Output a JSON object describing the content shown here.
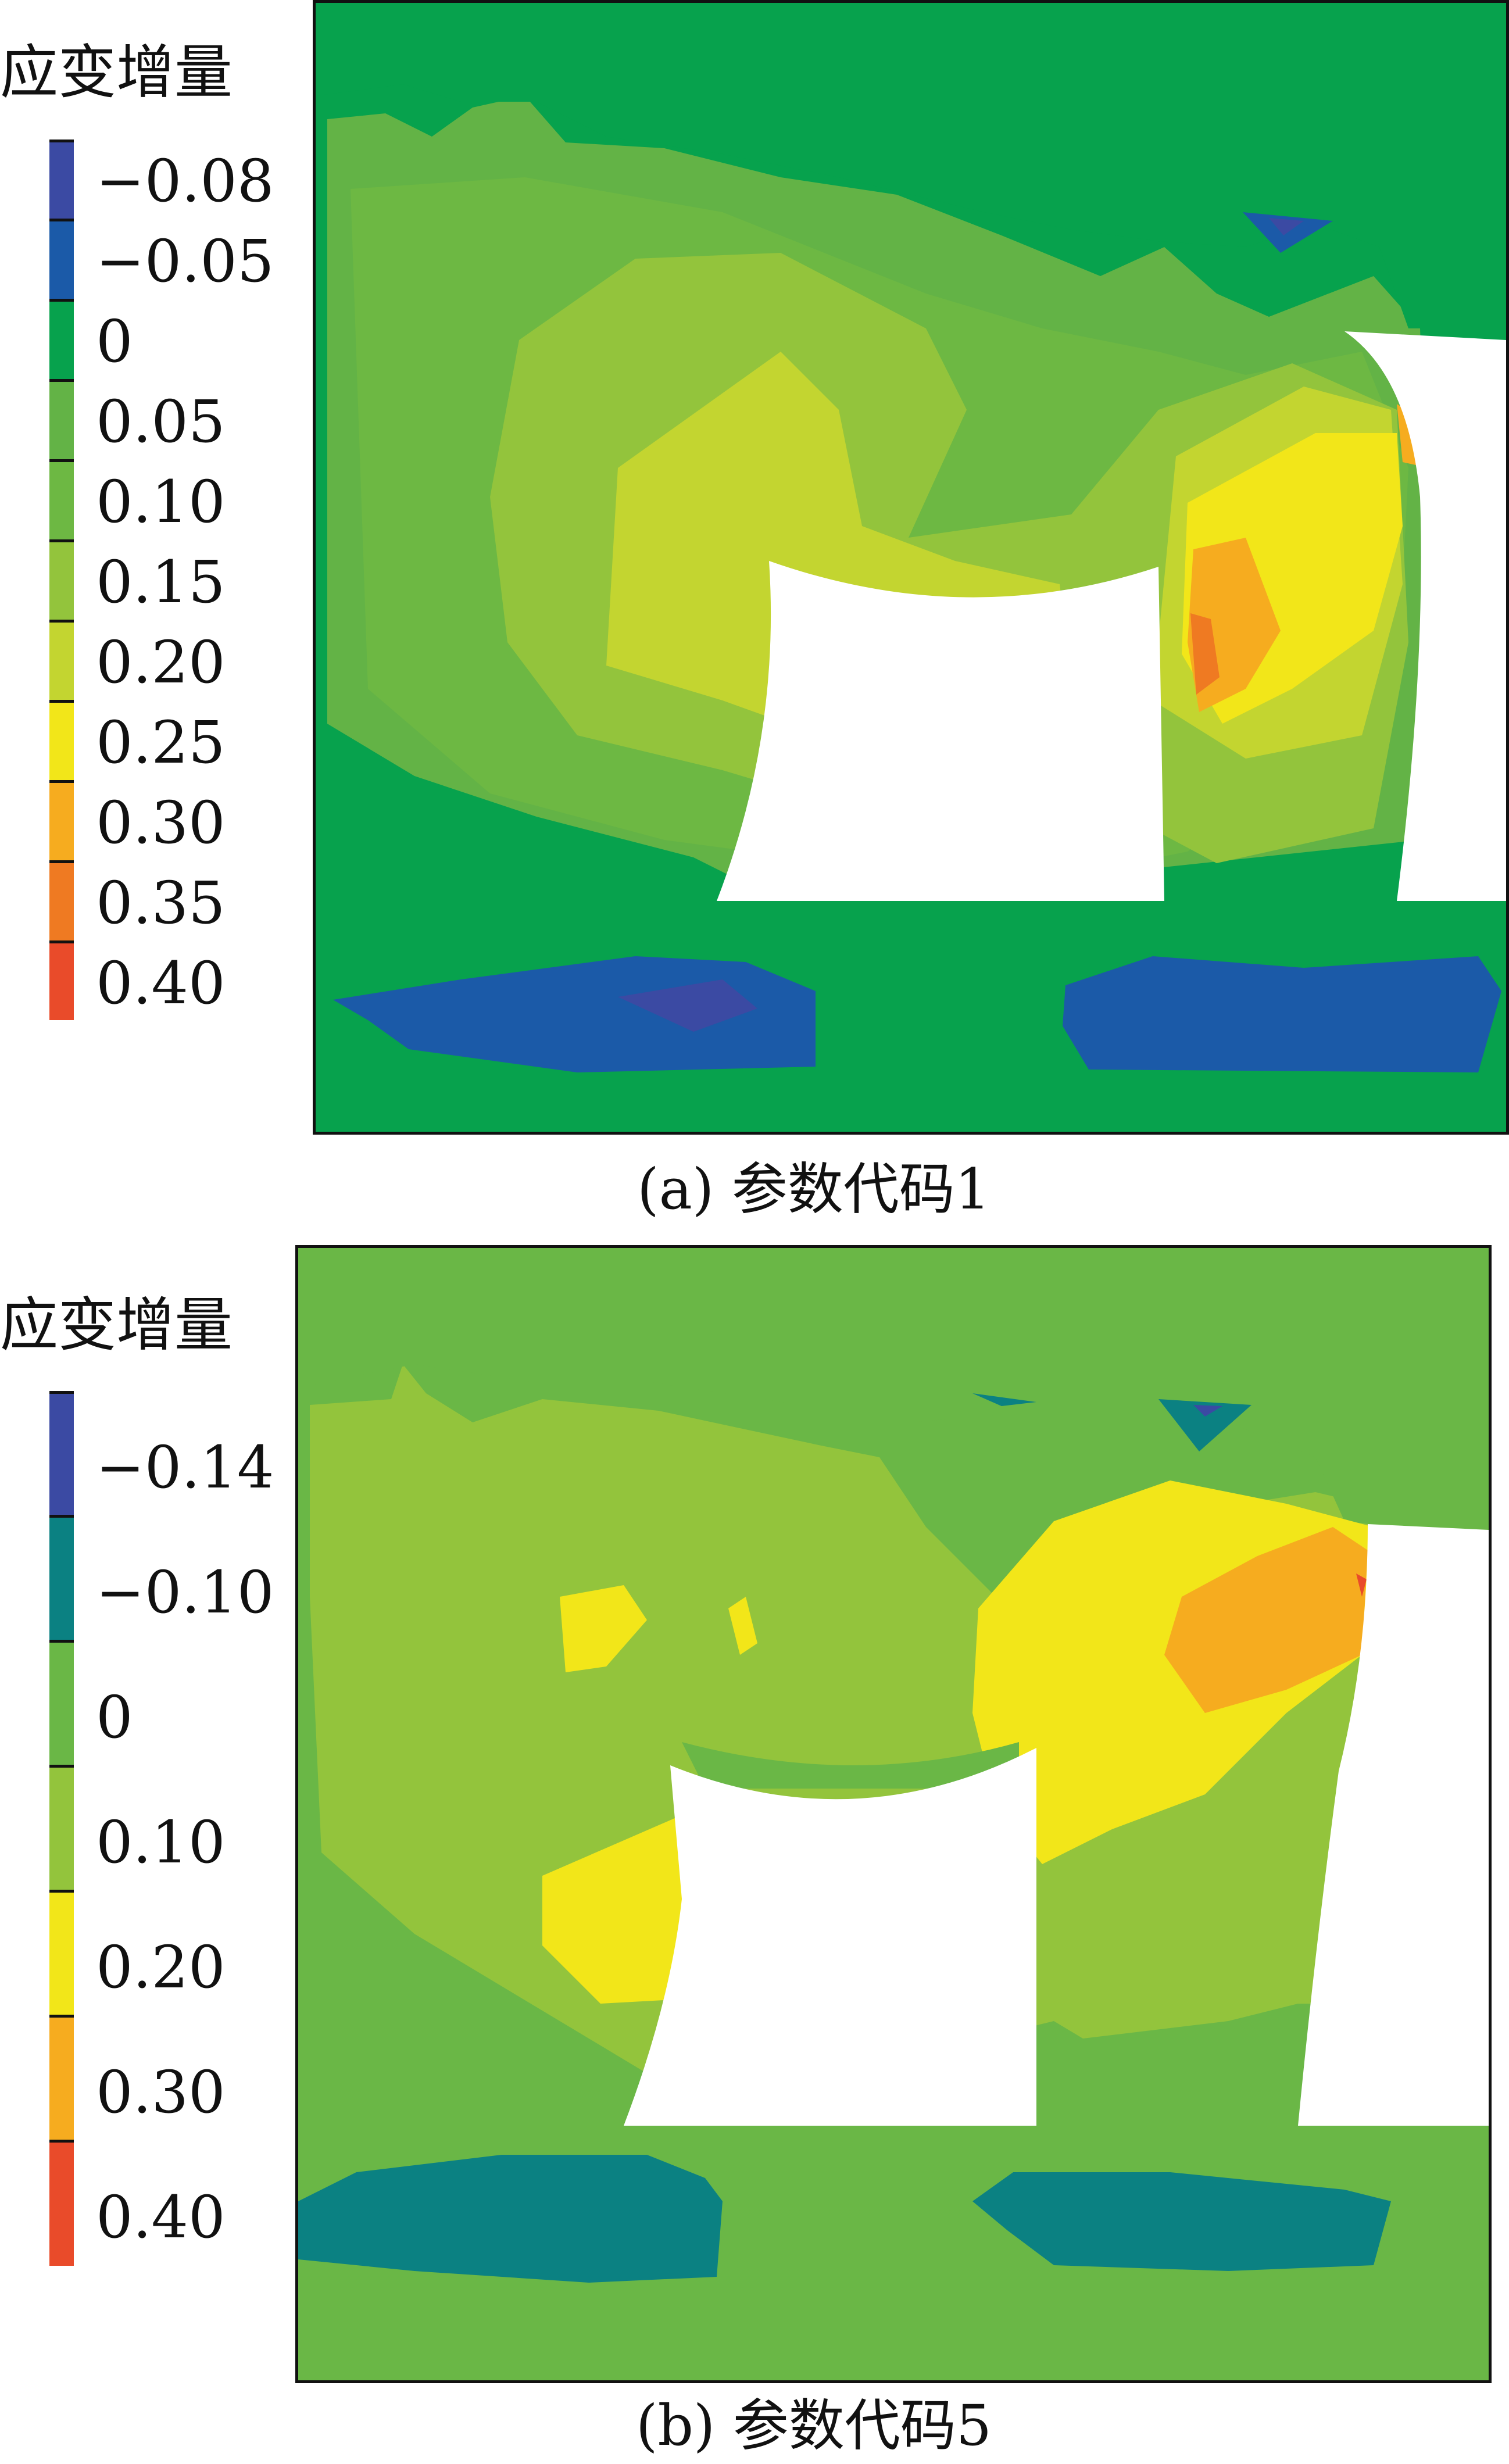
{
  "panels": [
    {
      "legend_title": "应变增量",
      "legend": [
        {
          "label": "−0.08",
          "color": "#3b4aa3"
        },
        {
          "label": "−0.05",
          "color": "#1b5aa8"
        },
        {
          "label": "0",
          "color": "#07a24d"
        },
        {
          "label": "0.05",
          "color": "#63b346"
        },
        {
          "label": "0.10",
          "color": "#6db843"
        },
        {
          "label": "0.15",
          "color": "#93c43c"
        },
        {
          "label": "0.20",
          "color": "#c3d530"
        },
        {
          "label": "0.25",
          "color": "#f2e619"
        },
        {
          "label": "0.30",
          "color": "#f6ac1f"
        },
        {
          "label": "0.35",
          "color": "#ef7a22"
        },
        {
          "label": "0.40",
          "color": "#e94b2a"
        }
      ],
      "caption": "(a)  参数代码1"
    },
    {
      "legend_title": "应变增量",
      "legend": [
        {
          "label": "−0.14",
          "color": "#3b4aa3"
        },
        {
          "label": "−0.10",
          "color": "#0b8182"
        },
        {
          "label": "0",
          "color": "#6ab746"
        },
        {
          "label": "0.10",
          "color": "#93c43c"
        },
        {
          "label": "0.20",
          "color": "#f2e619"
        },
        {
          "label": "0.30",
          "color": "#f6ac1f"
        },
        {
          "label": "0.40",
          "color": "#e94b2a"
        }
      ],
      "caption": "(b)  参数代码5"
    }
  ]
}
